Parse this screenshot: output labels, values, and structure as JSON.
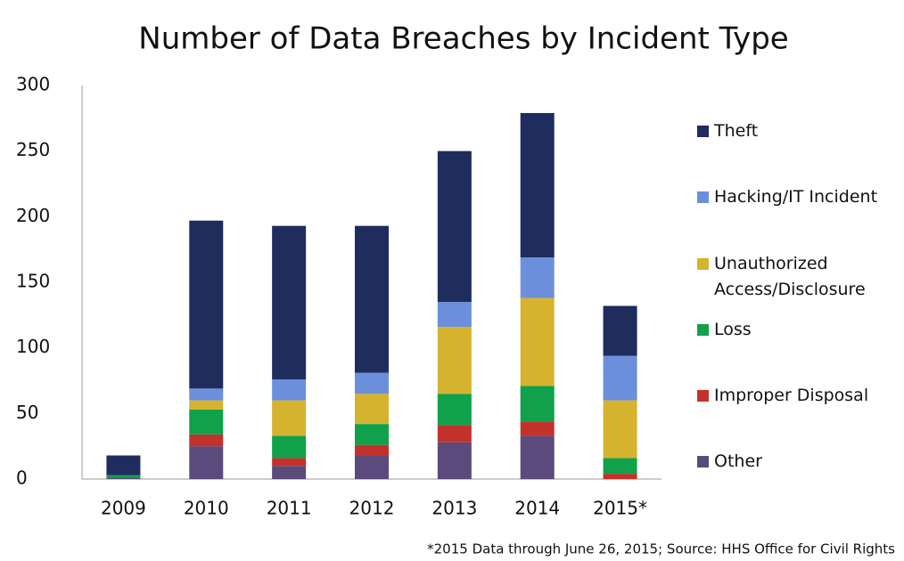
{
  "chart_data": {
    "type": "stacked_bar",
    "title": "Number of Data Breaches by Incident Type",
    "note": "*2015 Data through June 26, 2015; Source: HHS Office for Civil Rights",
    "categories": [
      "2009",
      "2010",
      "2011",
      "2012",
      "2013",
      "2014",
      "2015*"
    ],
    "series": [
      {
        "name": "Other",
        "color": "#5b4a7c",
        "values": [
          1,
          25,
          10,
          18,
          28,
          33,
          0
        ]
      },
      {
        "name": "Improper Disposal",
        "color": "#c3312b",
        "values": [
          0,
          9,
          6,
          8,
          13,
          11,
          4
        ]
      },
      {
        "name": "Loss",
        "color": "#10a14a",
        "values": [
          2,
          19,
          17,
          16,
          24,
          27,
          12
        ]
      },
      {
        "name": "Unauthorized Access/Disclosure",
        "color": "#d6b32f",
        "values": [
          0,
          7,
          27,
          23,
          51,
          67,
          44
        ]
      },
      {
        "name": "Hacking/IT Incident",
        "color": "#6b8fdb",
        "values": [
          0,
          9,
          16,
          16,
          19,
          31,
          34
        ]
      },
      {
        "name": "Theft",
        "color": "#1f2c5e",
        "values": [
          15,
          128,
          117,
          112,
          115,
          110,
          38
        ]
      }
    ],
    "ylim": [
      0,
      300
    ],
    "yticks": [
      0,
      50,
      100,
      150,
      200,
      250,
      300
    ],
    "legend": "right"
  }
}
